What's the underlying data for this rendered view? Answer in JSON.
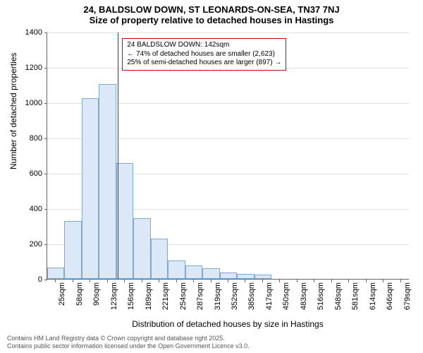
{
  "title": {
    "line1": "24, BALDSLOW DOWN, ST LEONARDS-ON-SEA, TN37 7NJ",
    "line2": "Size of property relative to detached houses in Hastings"
  },
  "chart": {
    "type": "histogram",
    "y": {
      "label": "Number of detached properties",
      "min": 0,
      "max": 1400,
      "step": 200,
      "ticks": [
        0,
        200,
        400,
        600,
        800,
        1000,
        1200,
        1400
      ]
    },
    "x": {
      "label": "Distribution of detached houses by size in Hastings",
      "ticks": [
        "25sqm",
        "58sqm",
        "90sqm",
        "123sqm",
        "156sqm",
        "189sqm",
        "221sqm",
        "254sqm",
        "287sqm",
        "319sqm",
        "352sqm",
        "385sqm",
        "417sqm",
        "450sqm",
        "483sqm",
        "516sqm",
        "548sqm",
        "581sqm",
        "614sqm",
        "646sqm",
        "679sqm"
      ]
    },
    "bar_color": "#dbe8f7",
    "bar_border": "#7fa8d0",
    "grid_color": "#e0e0e0",
    "axis_color": "#666666",
    "background_color": "#ffffff",
    "values": [
      65,
      330,
      1025,
      1105,
      655,
      345,
      230,
      105,
      75,
      60,
      35,
      30,
      25,
      0,
      0,
      0,
      0,
      0,
      0,
      0,
      0
    ],
    "reference": {
      "index": 3.6,
      "color": "#d00000",
      "box": {
        "line1": "24 BALDSLOW DOWN: 142sqm",
        "line2": "← 74% of detached houses are smaller (2,623)",
        "line3": "25% of semi-detached houses are larger (897) →"
      }
    }
  },
  "footer": {
    "line1": "Contains HM Land Registry data © Crown copyright and database right 2025.",
    "line2": "Contains public sector information licensed under the Open Government Licence v3.0."
  }
}
